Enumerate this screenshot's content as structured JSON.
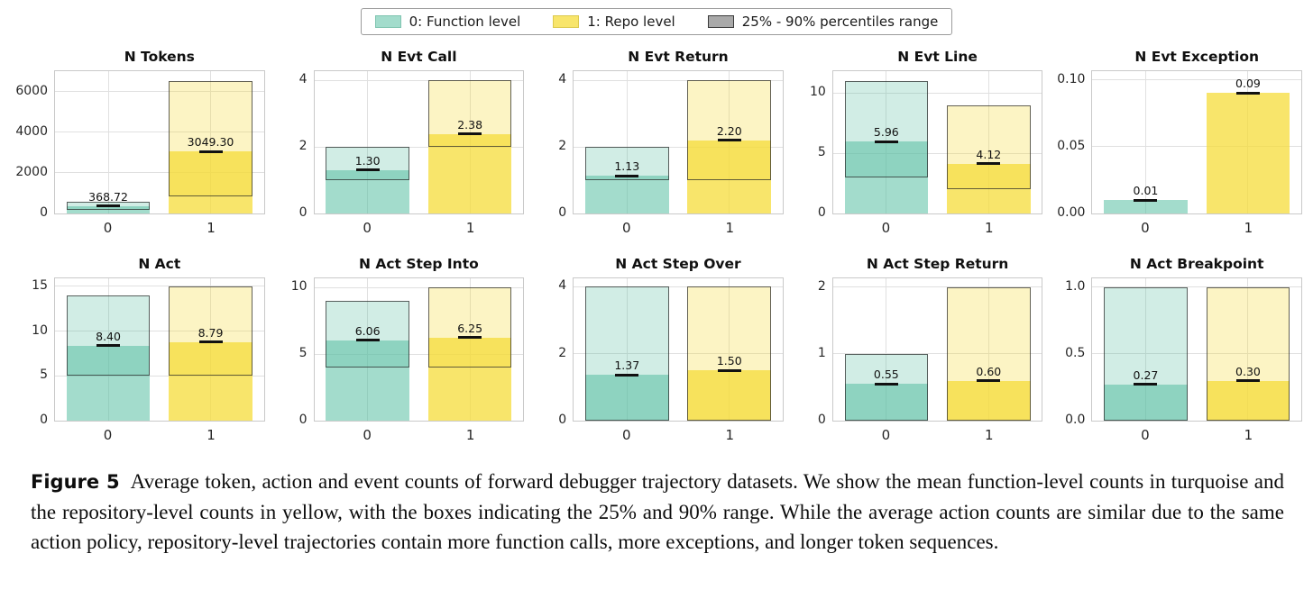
{
  "legend": {
    "items": [
      {
        "label": "0: Function level",
        "swatch": "turquoise-swatch",
        "color": "#a3dccc",
        "edge": "#7fc4b0"
      },
      {
        "label": "1: Repo level",
        "swatch": "yellow-swatch",
        "color": "#f8e56b",
        "edge": "#dcc94e"
      },
      {
        "label": "25% - 90% percentiles range",
        "swatch": "gray-swatch",
        "color": "#a9a9a9",
        "edge": "#3a3a3a"
      }
    ]
  },
  "colors": {
    "function_level_base": "#58bfa2",
    "repo_level_base": "#f6dc3a",
    "box_edge": "#2d2d2d",
    "grid_line": "#e0e0e0",
    "plot_border": "#c9c9c9"
  },
  "chart_data": [
    {
      "type": "bar",
      "title": "N Tokens",
      "categories": [
        "0",
        "1"
      ],
      "ylim": [
        0,
        7000
      ],
      "yticks": [
        {
          "v": 0,
          "t": "0"
        },
        {
          "v": 2000,
          "t": "2000"
        },
        {
          "v": 4000,
          "t": "4000"
        },
        {
          "v": 6000,
          "t": "6000"
        }
      ],
      "series": [
        {
          "name": "0: Function level",
          "mean": 368.72,
          "label": "368.72",
          "p25": 170,
          "p90": 580
        },
        {
          "name": "1: Repo level",
          "mean": 3049.3,
          "label": "3049.30",
          "p25": 850,
          "p90": 6500
        }
      ]
    },
    {
      "type": "bar",
      "title": "N Evt Call",
      "categories": [
        "0",
        "1"
      ],
      "ylim": [
        0,
        4.27
      ],
      "yticks": [
        {
          "v": 0,
          "t": "0"
        },
        {
          "v": 2,
          "t": "2"
        },
        {
          "v": 4,
          "t": "4"
        }
      ],
      "series": [
        {
          "name": "0: Function level",
          "mean": 1.3,
          "label": "1.30",
          "p25": 1,
          "p90": 2
        },
        {
          "name": "1: Repo level",
          "mean": 2.38,
          "label": "2.38",
          "p25": 2,
          "p90": 4
        }
      ]
    },
    {
      "type": "bar",
      "title": "N Evt Return",
      "categories": [
        "0",
        "1"
      ],
      "ylim": [
        0,
        4.27
      ],
      "yticks": [
        {
          "v": 0,
          "t": "0"
        },
        {
          "v": 2,
          "t": "2"
        },
        {
          "v": 4,
          "t": "4"
        }
      ],
      "series": [
        {
          "name": "0: Function level",
          "mean": 1.13,
          "label": "1.13",
          "p25": 1,
          "p90": 2
        },
        {
          "name": "1: Repo level",
          "mean": 2.2,
          "label": "2.20",
          "p25": 1,
          "p90": 4
        }
      ]
    },
    {
      "type": "bar",
      "title": "N Evt Line",
      "categories": [
        "0",
        "1"
      ],
      "ylim": [
        0,
        11.8
      ],
      "yticks": [
        {
          "v": 0,
          "t": "0"
        },
        {
          "v": 5,
          "t": "5"
        },
        {
          "v": 10,
          "t": "10"
        }
      ],
      "series": [
        {
          "name": "0: Function level",
          "mean": 5.96,
          "label": "5.96",
          "p25": 3,
          "p90": 11
        },
        {
          "name": "1: Repo level",
          "mean": 4.12,
          "label": "4.12",
          "p25": 2,
          "p90": 9
        }
      ]
    },
    {
      "type": "bar",
      "title": "N Evt Exception",
      "categories": [
        "0",
        "1"
      ],
      "ylim": [
        0,
        0.1065
      ],
      "yticks": [
        {
          "v": 0,
          "t": "0.00"
        },
        {
          "v": 0.05,
          "t": "0.05"
        },
        {
          "v": 0.1,
          "t": "0.10"
        }
      ],
      "series": [
        {
          "name": "0: Function level",
          "mean": 0.01,
          "label": "0.01",
          "p25": null,
          "p90": null
        },
        {
          "name": "1: Repo level",
          "mean": 0.09,
          "label": "0.09",
          "p25": null,
          "p90": null
        }
      ]
    },
    {
      "type": "bar",
      "title": "N Act",
      "categories": [
        "0",
        "1"
      ],
      "ylim": [
        0,
        15.9
      ],
      "yticks": [
        {
          "v": 0,
          "t": "0"
        },
        {
          "v": 5,
          "t": "5"
        },
        {
          "v": 10,
          "t": "10"
        },
        {
          "v": 15,
          "t": "15"
        }
      ],
      "series": [
        {
          "name": "0: Function level",
          "mean": 8.4,
          "label": "8.40",
          "p25": 5,
          "p90": 14
        },
        {
          "name": "1: Repo level",
          "mean": 8.79,
          "label": "8.79",
          "p25": 5,
          "p90": 15
        }
      ]
    },
    {
      "type": "bar",
      "title": "N Act Step Into",
      "categories": [
        "0",
        "1"
      ],
      "ylim": [
        0,
        10.7
      ],
      "yticks": [
        {
          "v": 0,
          "t": "0"
        },
        {
          "v": 5,
          "t": "5"
        },
        {
          "v": 10,
          "t": "10"
        }
      ],
      "series": [
        {
          "name": "0: Function level",
          "mean": 6.06,
          "label": "6.06",
          "p25": 4,
          "p90": 9
        },
        {
          "name": "1: Repo level",
          "mean": 6.25,
          "label": "6.25",
          "p25": 4,
          "p90": 10
        }
      ]
    },
    {
      "type": "bar",
      "title": "N Act Step Over",
      "categories": [
        "0",
        "1"
      ],
      "ylim": [
        0,
        4.25
      ],
      "yticks": [
        {
          "v": 0,
          "t": "0"
        },
        {
          "v": 2,
          "t": "2"
        },
        {
          "v": 4,
          "t": "4"
        }
      ],
      "series": [
        {
          "name": "0: Function level",
          "mean": 1.37,
          "label": "1.37",
          "p25": 0,
          "p90": 4
        },
        {
          "name": "1: Repo level",
          "mean": 1.5,
          "label": "1.50",
          "p25": 0,
          "p90": 4
        }
      ]
    },
    {
      "type": "bar",
      "title": "N Act Step Return",
      "categories": [
        "0",
        "1"
      ],
      "ylim": [
        0,
        2.13
      ],
      "yticks": [
        {
          "v": 0,
          "t": "0"
        },
        {
          "v": 1,
          "t": "1"
        },
        {
          "v": 2,
          "t": "2"
        }
      ],
      "series": [
        {
          "name": "0: Function level",
          "mean": 0.55,
          "label": "0.55",
          "p25": 0,
          "p90": 1
        },
        {
          "name": "1: Repo level",
          "mean": 0.6,
          "label": "0.60",
          "p25": 0,
          "p90": 2
        }
      ]
    },
    {
      "type": "bar",
      "title": "N Act Breakpoint",
      "categories": [
        "0",
        "1"
      ],
      "ylim": [
        0,
        1.065
      ],
      "yticks": [
        {
          "v": 0,
          "t": "0.0"
        },
        {
          "v": 0.5,
          "t": "0.5"
        },
        {
          "v": 1,
          "t": "1.0"
        }
      ],
      "series": [
        {
          "name": "0: Function level",
          "mean": 0.27,
          "label": "0.27",
          "p25": 0,
          "p90": 1
        },
        {
          "name": "1: Repo level",
          "mean": 0.3,
          "label": "0.30",
          "p25": 0,
          "p90": 1
        }
      ]
    }
  ],
  "caption": {
    "label": "Figure 5",
    "text": "Average token, action and event counts of forward debugger trajectory datasets. We show the mean function-level counts in turquoise and the repository-level counts in yellow, with the boxes indicating the 25% and 90% range. While the average action counts are similar due to the same action policy, repository-level trajectories contain more function calls, more exceptions, and longer token sequences."
  }
}
